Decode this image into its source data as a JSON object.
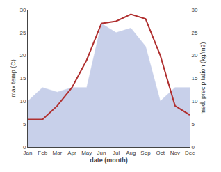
{
  "chart_data": {
    "type": "line",
    "categories": [
      "Jan",
      "Feb",
      "Mar",
      "Apr",
      "May",
      "Jun",
      "Jul",
      "Aug",
      "Sep",
      "Oct",
      "Nov",
      "Dec"
    ],
    "xlabel": "date (month)",
    "ylabel": "max temp (C)",
    "y2label": "med. precipitation (kg/m2)",
    "series": [
      {
        "type": "area",
        "color": "#c8d0ea",
        "axis": "y2",
        "values": [
          10,
          13,
          12,
          13,
          13,
          27,
          25,
          26,
          22,
          10,
          13,
          13
        ]
      },
      {
        "type": "line",
        "color": "#b03030",
        "values": [
          6,
          6,
          9,
          13,
          19,
          27,
          27.5,
          29,
          28,
          20,
          9,
          7
        ]
      }
    ],
    "ylim": [
      0,
      30
    ],
    "yticks": [
      0,
      5,
      10,
      15,
      20,
      25,
      30
    ],
    "y2lim": [
      0,
      30
    ],
    "y2ticks": [
      0,
      5,
      10,
      15,
      20,
      25,
      30
    ],
    "grid": false
  }
}
